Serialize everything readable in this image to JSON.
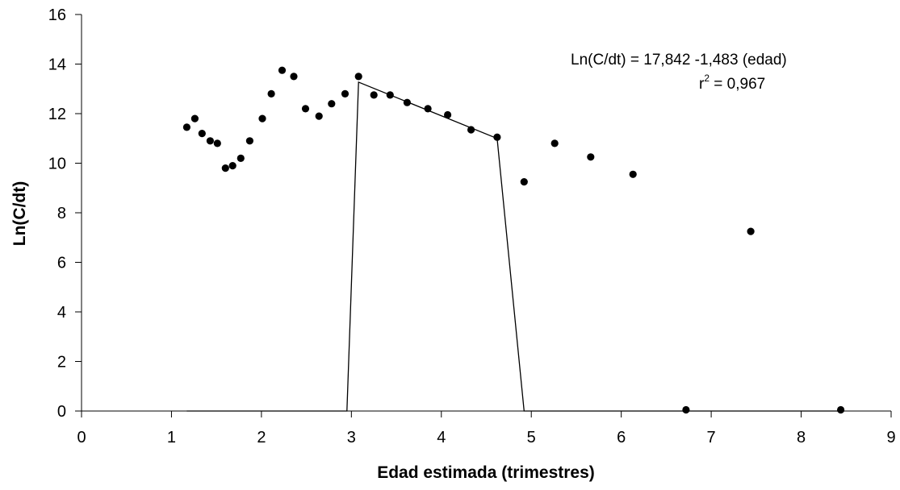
{
  "chart_data": {
    "type": "scatter",
    "title": "",
    "xlabel": "Edad estimada (trimestres)",
    "ylabel": "Ln(C/dt)",
    "xlim": [
      0,
      9
    ],
    "ylim": [
      0,
      16
    ],
    "x_ticks": [
      0,
      1,
      2,
      3,
      4,
      5,
      6,
      7,
      8,
      9
    ],
    "y_ticks": [
      0,
      2,
      4,
      6,
      8,
      10,
      12,
      14,
      16
    ],
    "grid": false,
    "legend": "none",
    "colors": {
      "points": "#000000",
      "line": "#000000",
      "axes": "#000000"
    },
    "series": [
      {
        "kind": "scatter",
        "x": [
          1.17,
          1.26,
          1.34,
          1.43,
          1.51,
          1.6,
          1.68,
          1.77,
          1.87,
          2.01,
          2.11,
          2.23,
          2.36,
          2.49,
          2.64,
          2.78,
          2.93,
          3.08,
          3.25,
          3.43,
          3.62,
          3.85,
          4.07,
          4.33,
          4.62,
          4.92,
          5.26,
          5.66,
          6.13,
          6.72,
          7.44,
          8.44
        ],
        "y": [
          11.45,
          11.8,
          11.2,
          10.9,
          10.8,
          9.8,
          9.9,
          10.2,
          10.9,
          11.8,
          12.8,
          13.75,
          13.5,
          12.2,
          11.9,
          12.4,
          12.8,
          13.5,
          12.75,
          12.75,
          12.45,
          12.2,
          11.95,
          11.35,
          11.05,
          9.25,
          10.8,
          10.25,
          9.55,
          0.05,
          7.25,
          0.05
        ]
      },
      {
        "kind": "line",
        "x": [
          1.17,
          2.95,
          3.08,
          4.62,
          4.92,
          8.44
        ],
        "y": [
          0,
          0,
          13.27,
          11.0,
          0,
          0
        ]
      }
    ],
    "annotations": {
      "equation": "Ln(C/dt) = 17,842  -1,483 (edad)",
      "r2_label": "r",
      "r2_exp": "2",
      "r2_value": " = 0,967"
    }
  }
}
